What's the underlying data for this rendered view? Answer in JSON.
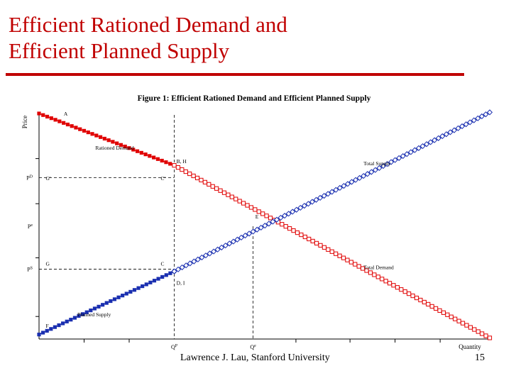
{
  "slide": {
    "title_line1": "Efficient Rationed Demand and",
    "title_line2": "Efficient Planned Supply",
    "footer": "Lawrence J. Lau, Stanford University",
    "page_number": "15"
  },
  "colors": {
    "accent": "#c00000",
    "demand": "#e00000",
    "supply": "#1a2fb0"
  },
  "chart_data": {
    "type": "line",
    "title": "Figure 1: Efficient Rationed Demand and Efficient Planned Supply",
    "xlabel": "Quantity",
    "ylabel": "Price",
    "xlim": [
      0,
      10
    ],
    "ylim": [
      0,
      10
    ],
    "grid": false,
    "x_ticks": [
      {
        "value": 3.0,
        "label": "Q^P"
      },
      {
        "value": 4.75,
        "label": "Q^e"
      }
    ],
    "y_ticks": [
      {
        "value": 7.15,
        "label": "P^D"
      },
      {
        "value": 5.0,
        "label": "P^e"
      },
      {
        "value": 3.1,
        "label": "P^S"
      }
    ],
    "series": [
      {
        "name": "Rationed Demand",
        "style": "filled",
        "x": [
          0,
          3.0
        ],
        "y": [
          10,
          7.7
        ]
      },
      {
        "name": "Total Demand",
        "style": "hollow",
        "x": [
          3.0,
          10
        ],
        "y": [
          7.7,
          0.05
        ]
      },
      {
        "name": "Planned Supply",
        "style": "filled",
        "x": [
          0,
          3.0
        ],
        "y": [
          0.2,
          3.0
        ]
      },
      {
        "name": "Total Supply",
        "style": "hollow",
        "x": [
          3.0,
          10
        ],
        "y": [
          3.0,
          10.05
        ]
      }
    ],
    "point_labels": [
      {
        "text": "A",
        "x": 0.55,
        "y": 9.9
      },
      {
        "text": "B, H",
        "x": 3.05,
        "y": 7.8
      },
      {
        "text": "C'",
        "x": 2.7,
        "y": 7.05
      },
      {
        "text": "G'",
        "x": 0.15,
        "y": 7.05
      },
      {
        "text": "E",
        "x": 4.8,
        "y": 5.35
      },
      {
        "text": "G",
        "x": 0.15,
        "y": 3.25
      },
      {
        "text": "C",
        "x": 2.7,
        "y": 3.25
      },
      {
        "text": "D, I",
        "x": 3.05,
        "y": 2.4
      },
      {
        "text": "F",
        "x": 0.15,
        "y": 0.5
      }
    ],
    "legend": "labels on curves"
  }
}
